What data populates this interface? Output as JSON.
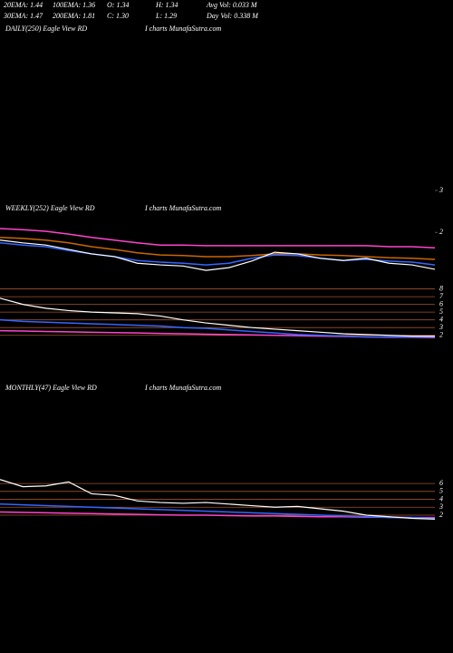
{
  "header": {
    "stats": [
      [
        "20EMA: 1.44",
        "100EMA: 1.36",
        "O: 1.34",
        "H: 1.34",
        "Avg Vol: 0.033  M"
      ],
      [
        "30EMA: 1.47",
        "200EMA: 1.81",
        "C: 1.30",
        "L: 1.29",
        "Day Vol: 0.338  M"
      ]
    ]
  },
  "chart_data": [
    {
      "type": "line",
      "title": "DAILY(250) Eagle  View  RD",
      "annotation": "I charts MunafaSutra.com",
      "ylim": [
        2.9,
        4.7
      ],
      "yticks": [
        3
      ],
      "grid": false
    },
    {
      "type": "line",
      "title": "WEEKLY(252) Eagle  View  RD",
      "annotation": "I charts MunafaSutra.com",
      "ylim": [
        0.95,
        2.35
      ],
      "yticks": [
        2
      ],
      "grid": false,
      "categories": [
        null,
        null,
        null,
        null,
        null,
        null,
        null,
        null,
        null,
        null,
        null,
        null,
        null,
        null,
        null,
        null,
        null,
        null,
        null,
        null
      ],
      "series": [
        {
          "color": "#ff44cc",
          "values": [
            2.07,
            2.05,
            2.02,
            1.97,
            1.91,
            1.86,
            1.81,
            1.77,
            1.77,
            1.76,
            1.76,
            1.76,
            1.76,
            1.76,
            1.76,
            1.76,
            1.76,
            1.74,
            1.74,
            1.72
          ]
        },
        {
          "color": "#cc6600",
          "values": [
            1.91,
            1.89,
            1.86,
            1.81,
            1.74,
            1.69,
            1.63,
            1.59,
            1.58,
            1.56,
            1.56,
            1.58,
            1.61,
            1.61,
            1.59,
            1.58,
            1.56,
            1.54,
            1.53,
            1.51
          ]
        },
        {
          "color": "#3366ff",
          "values": [
            1.81,
            1.77,
            1.74,
            1.67,
            1.61,
            1.56,
            1.49,
            1.46,
            1.44,
            1.41,
            1.44,
            1.53,
            1.59,
            1.58,
            1.53,
            1.49,
            1.51,
            1.48,
            1.46,
            1.41
          ]
        },
        {
          "color": "#ffffff",
          "values": [
            1.86,
            1.81,
            1.77,
            1.69,
            1.61,
            1.56,
            1.44,
            1.41,
            1.39,
            1.31,
            1.36,
            1.48,
            1.64,
            1.61,
            1.53,
            1.49,
            1.53,
            1.44,
            1.41,
            1.33
          ]
        }
      ]
    },
    {
      "type": "line",
      "ylim": [
        1.5,
        8.3
      ],
      "yticks": [
        2,
        3,
        4,
        5,
        6,
        7,
        8
      ],
      "grid": true,
      "categories": [
        null,
        null,
        null,
        null,
        null,
        null,
        null,
        null,
        null,
        null,
        null,
        null,
        null,
        null,
        null,
        null,
        null,
        null,
        null,
        null
      ],
      "series": [
        {
          "color": "#ff44cc",
          "values": [
            2.6,
            2.55,
            2.5,
            2.45,
            2.4,
            2.35,
            2.3,
            2.25,
            2.2,
            2.15,
            2.1,
            2.05,
            2.0,
            1.95,
            1.9,
            1.85,
            1.8,
            1.75,
            1.75,
            1.7
          ]
        },
        {
          "color": "#3366ff",
          "values": [
            4.0,
            3.8,
            3.7,
            3.6,
            3.5,
            3.4,
            3.3,
            3.2,
            3.0,
            2.9,
            2.7,
            2.5,
            2.3,
            2.1,
            2.0,
            1.9,
            1.8,
            1.8,
            1.8,
            1.8
          ]
        },
        {
          "color": "#ffffff",
          "values": [
            6.8,
            6.0,
            5.5,
            5.2,
            5.0,
            4.9,
            4.8,
            4.5,
            4.0,
            3.6,
            3.3,
            3.0,
            2.8,
            2.6,
            2.4,
            2.2,
            2.1,
            2.0,
            1.9,
            1.9
          ]
        }
      ]
    },
    {
      "type": "line",
      "title": "MONTHLY(47) Eagle  View  RD",
      "annotation": "I charts MunafaSutra.com",
      "ylim": [
        1.2,
        7.5
      ],
      "yticks": [
        2,
        3,
        4,
        5,
        6
      ],
      "grid": true,
      "categories": [
        null,
        null,
        null,
        null,
        null,
        null,
        null,
        null,
        null,
        null,
        null,
        null,
        null,
        null,
        null,
        null,
        null,
        null,
        null,
        null
      ],
      "series": [
        {
          "color": "#ff44cc",
          "values": [
            2.4,
            2.35,
            2.3,
            2.25,
            2.2,
            2.15,
            2.1,
            2.05,
            2.0,
            2.0,
            1.95,
            1.9,
            1.9,
            1.85,
            1.8,
            1.8,
            1.75,
            1.75,
            1.7,
            1.7
          ]
        },
        {
          "color": "#3366ff",
          "values": [
            3.4,
            3.3,
            3.2,
            3.1,
            3.0,
            2.9,
            2.8,
            2.7,
            2.6,
            2.5,
            2.4,
            2.3,
            2.2,
            2.1,
            2.0,
            1.9,
            1.8,
            1.7,
            1.7,
            1.6
          ]
        },
        {
          "color": "#ffffff",
          "values": [
            6.5,
            5.6,
            5.7,
            6.2,
            4.7,
            4.5,
            3.8,
            3.6,
            3.5,
            3.6,
            3.4,
            3.2,
            3.0,
            3.1,
            2.8,
            2.5,
            2.0,
            1.8,
            1.6,
            1.5
          ]
        }
      ]
    }
  ]
}
